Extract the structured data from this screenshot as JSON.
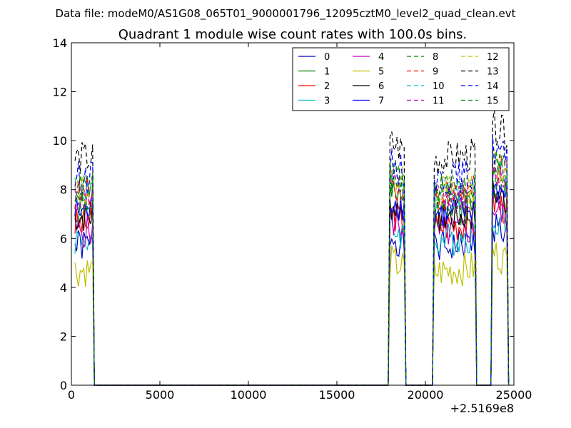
{
  "suptitle": "Data file: modeM0/AS1G08_065T01_9000001796_12095cztM0_level2_quad_clean.evt",
  "chart_data": {
    "type": "line",
    "title": "Quadrant 1 module wise count rates with 100.0s bins.",
    "xlabel": "",
    "ylabel": "",
    "xlim": [
      0,
      25000
    ],
    "ylim": [
      0,
      14
    ],
    "x_offset_label": "+2.5169e8",
    "xticks": [
      "0",
      "5000",
      "10000",
      "15000",
      "20000",
      "25000"
    ],
    "yticks": [
      "0",
      "2",
      "4",
      "6",
      "8",
      "10",
      "12",
      "14"
    ],
    "grid": false,
    "legend_position": "top-right",
    "legend_columns": 4,
    "series": [
      {
        "name": "0",
        "color": "#0000bf",
        "dash": false,
        "seed": 1,
        "level": 5.7
      },
      {
        "name": "1",
        "color": "#008000",
        "dash": false,
        "seed": 2,
        "level": 7.2
      },
      {
        "name": "2",
        "color": "#ff0000",
        "dash": false,
        "seed": 3,
        "level": 6.6
      },
      {
        "name": "3",
        "color": "#00bfbf",
        "dash": false,
        "seed": 4,
        "level": 6.0
      },
      {
        "name": "4",
        "color": "#bf00bf",
        "dash": false,
        "seed": 5,
        "level": 6.3
      },
      {
        "name": "5",
        "color": "#bfbf00",
        "dash": false,
        "seed": 6,
        "level": 4.7
      },
      {
        "name": "6",
        "color": "#000000",
        "dash": false,
        "seed": 7,
        "level": 6.9
      },
      {
        "name": "7",
        "color": "#0000ff",
        "dash": false,
        "seed": 8,
        "level": 7.1
      },
      {
        "name": "8",
        "color": "#008000",
        "dash": true,
        "seed": 9,
        "level": 7.6
      },
      {
        "name": "9",
        "color": "#ff0000",
        "dash": true,
        "seed": 10,
        "level": 7.8
      },
      {
        "name": "10",
        "color": "#00bfbf",
        "dash": true,
        "seed": 11,
        "level": 7.9
      },
      {
        "name": "11",
        "color": "#bf00bf",
        "dash": true,
        "seed": 12,
        "level": 7.7
      },
      {
        "name": "12",
        "color": "#bfbf00",
        "dash": true,
        "seed": 13,
        "level": 8.0
      },
      {
        "name": "13",
        "color": "#000000",
        "dash": true,
        "seed": 14,
        "level": 9.3
      },
      {
        "name": "14",
        "color": "#0000ff",
        "dash": true,
        "seed": 15,
        "level": 8.5
      },
      {
        "name": "15",
        "color": "#008000",
        "dash": true,
        "seed": 16,
        "level": 8.1
      }
    ],
    "active_segments": [
      {
        "x_start": 200,
        "x_end": 1200,
        "scale": 1.0,
        "trend": 0.0
      },
      {
        "x_start": 18000,
        "x_end": 18800,
        "scale": 1.05,
        "trend": -0.3
      },
      {
        "x_start": 20500,
        "x_end": 22800,
        "scale": 1.0,
        "trend": 0.2
      },
      {
        "x_start": 23800,
        "x_end": 24600,
        "scale": 1.12,
        "trend": -0.4
      }
    ]
  }
}
